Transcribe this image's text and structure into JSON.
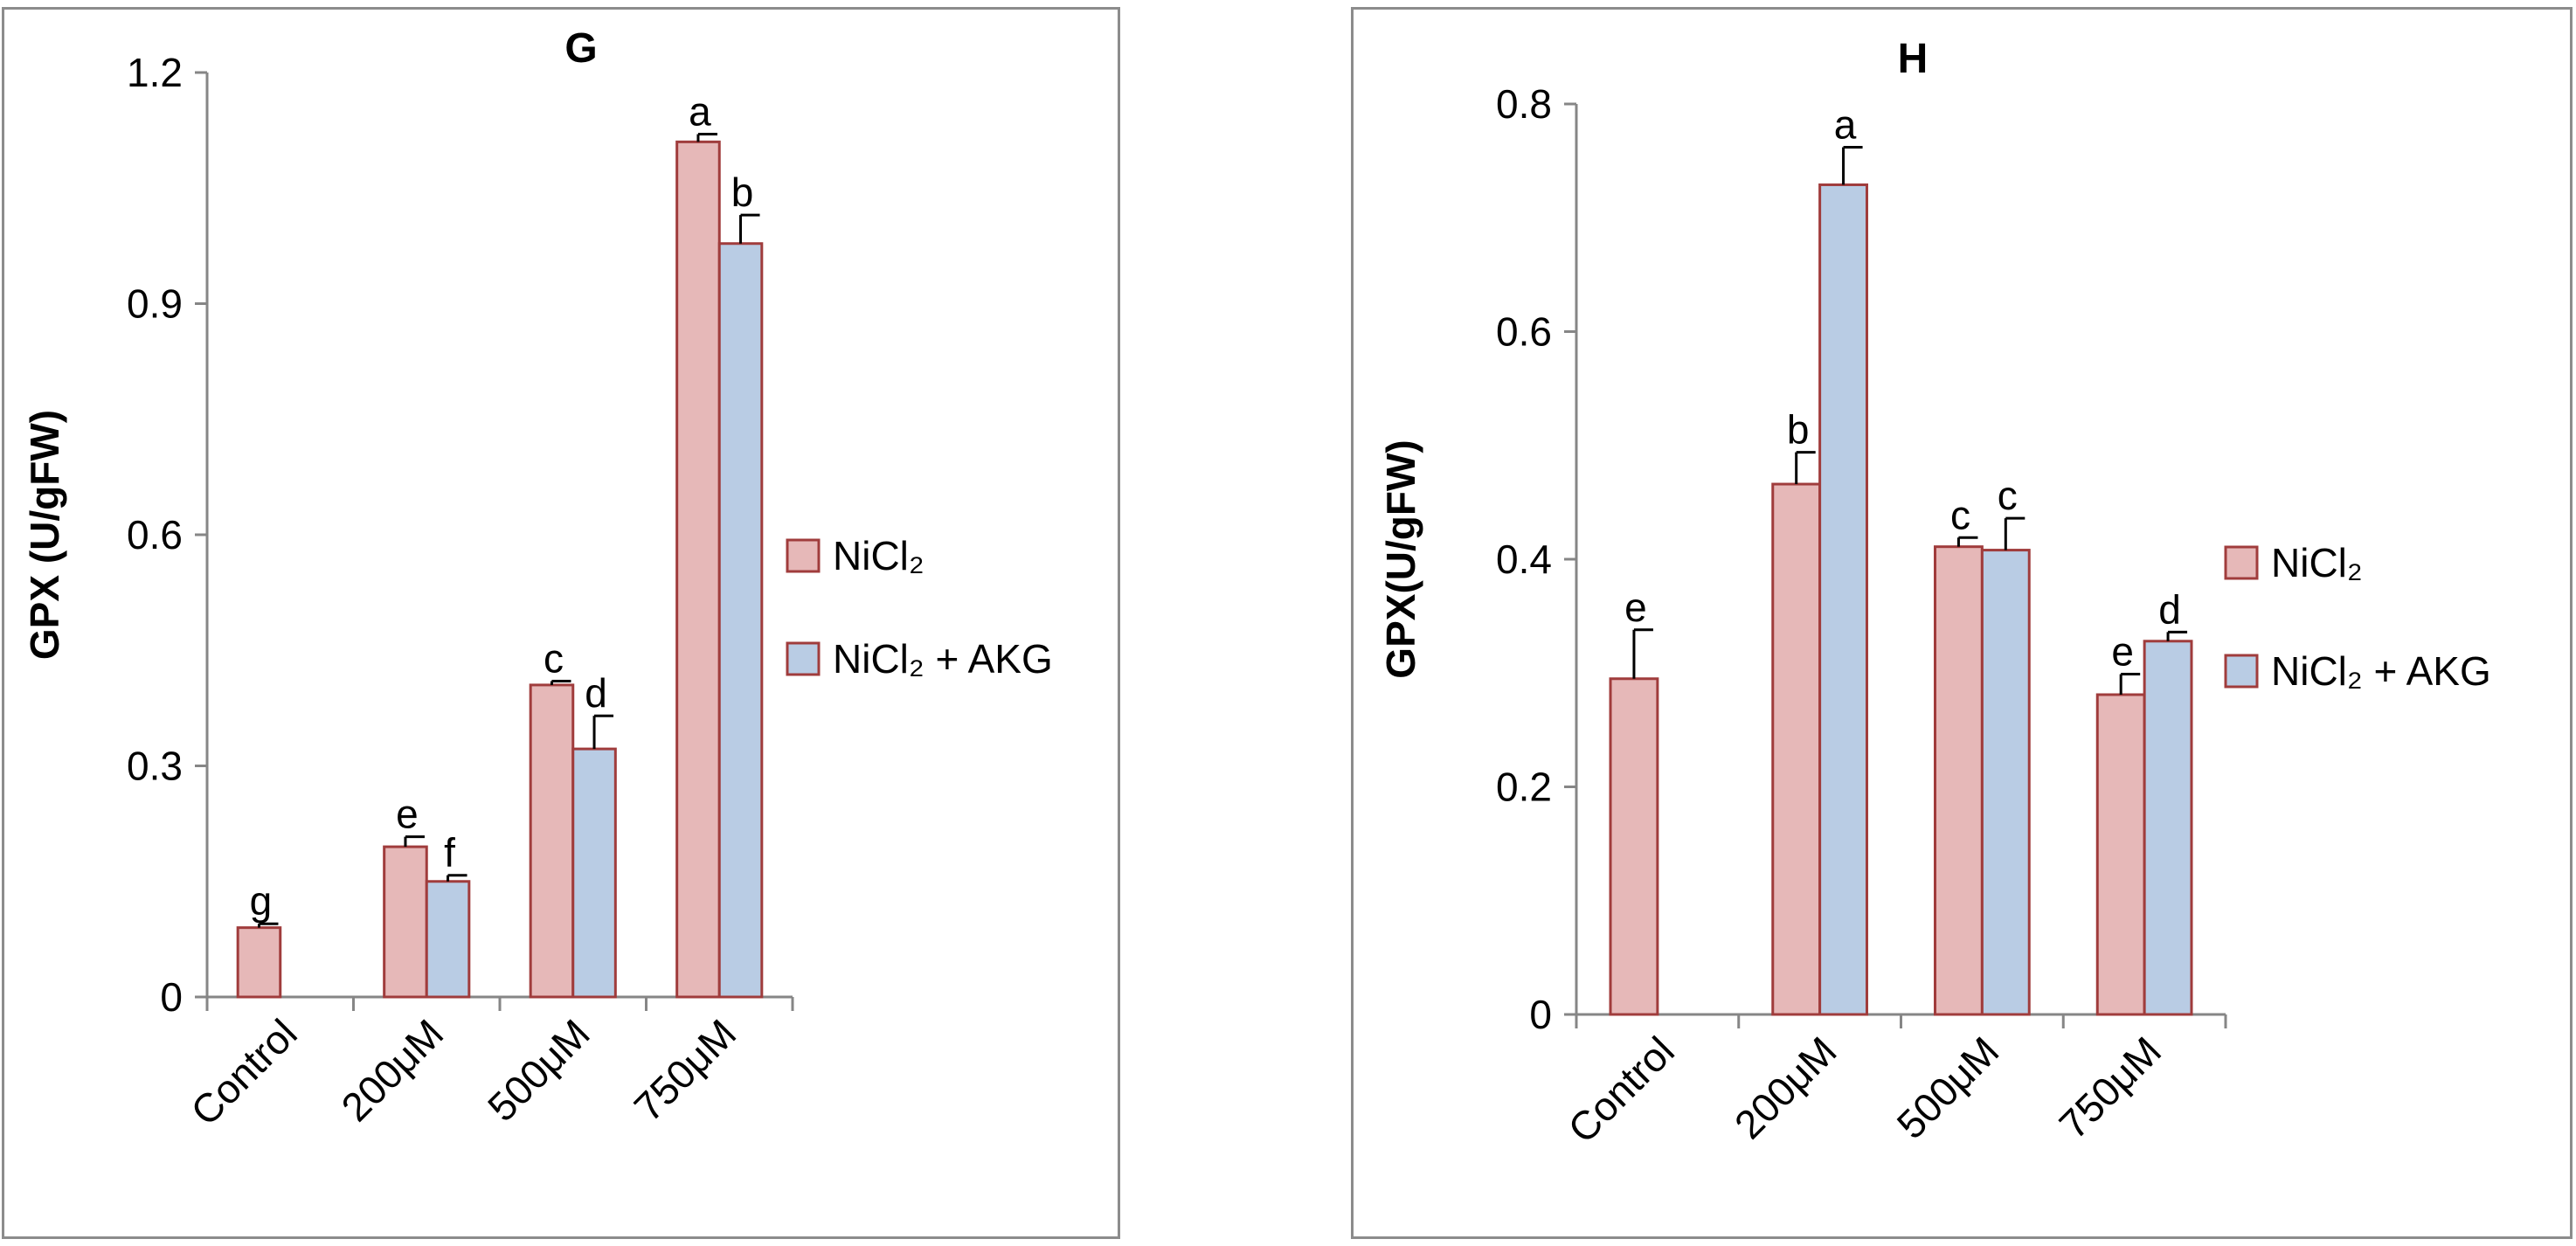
{
  "colors": {
    "nicl2_fill": "#e6b8b8",
    "nicl2_stroke": "#a03c3c",
    "akg_fill": "#b9cce4",
    "akg_stroke": "#a03c3c",
    "axis": "#868686",
    "border": "#8c8c8c"
  },
  "chart_data": [
    {
      "type": "bar",
      "title": "G",
      "ylabel": "GPX (U/gFW)",
      "xlabel": "",
      "categories": [
        "Control",
        "200μM",
        "500μM",
        "750μM"
      ],
      "ylim": [
        0,
        1.2
      ],
      "yticks": [
        "0",
        "0.3",
        "0.6",
        "0.9",
        "1.2"
      ],
      "ytick_values": [
        0,
        0.3,
        0.6,
        0.9,
        1.2
      ],
      "legend": [
        "NiCl₂",
        "NiCl₂ + AKG"
      ],
      "legend_position": "right",
      "series": [
        {
          "name": "NiCl₂",
          "values": [
            0.09,
            0.195,
            0.405,
            1.11
          ],
          "errors": [
            0.005,
            0.013,
            0.005,
            0.01
          ],
          "labels": [
            "g",
            "e",
            "c",
            "a"
          ]
        },
        {
          "name": "NiCl₂ + AKG",
          "values": [
            null,
            0.15,
            0.322,
            0.978
          ],
          "errors": [
            null,
            0.008,
            0.043,
            0.037
          ],
          "labels": [
            null,
            "f",
            "d",
            "b"
          ]
        }
      ]
    },
    {
      "type": "bar",
      "title": "H",
      "ylabel": "GPX(U/gFW)",
      "xlabel": "",
      "categories": [
        "Control",
        "200μM",
        "500μM",
        "750μM"
      ],
      "ylim": [
        0,
        0.8
      ],
      "yticks": [
        "0",
        "0.2",
        "0.4",
        "0.6",
        "0.8"
      ],
      "ytick_values": [
        0,
        0.2,
        0.4,
        0.6,
        0.8
      ],
      "legend": [
        "NiCl₂",
        "NiCl₂ + AKG"
      ],
      "legend_position": "right",
      "series": [
        {
          "name": "NiCl₂",
          "values": [
            0.295,
            0.466,
            0.411,
            0.281
          ],
          "errors": [
            0.043,
            0.028,
            0.008,
            0.018
          ],
          "labels": [
            "e",
            "b",
            "c",
            "e"
          ]
        },
        {
          "name": "NiCl₂ + AKG",
          "values": [
            null,
            0.729,
            0.408,
            0.328
          ],
          "errors": [
            null,
            0.033,
            0.028,
            0.008
          ],
          "labels": [
            null,
            "a",
            "c",
            "d"
          ]
        }
      ]
    }
  ]
}
